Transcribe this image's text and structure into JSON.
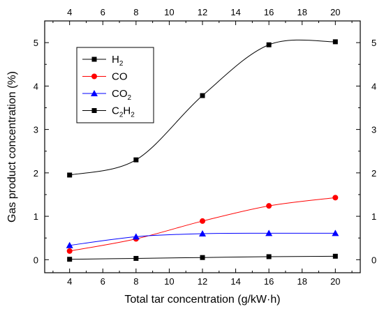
{
  "chart_data": {
    "type": "line",
    "title": "",
    "xlabel": "Total tar concentration (g/kW·h)",
    "ylabel": "Gas product concentration (%)",
    "xlim": [
      2.5,
      21.5
    ],
    "ylim": [
      -0.3,
      5.5
    ],
    "x_ticks": [
      4,
      6,
      8,
      10,
      12,
      14,
      16,
      18,
      20
    ],
    "y_ticks": [
      0,
      1,
      2,
      3,
      4,
      5
    ],
    "mirror_axes": true,
    "grid": false,
    "legend_position": "top-left",
    "series": [
      {
        "name": "H2",
        "name_parts": [
          [
            "H",
            ""
          ],
          [
            "2",
            "sub"
          ]
        ],
        "marker": "square",
        "color": "#000000",
        "x": [
          4,
          8,
          12,
          16,
          20
        ],
        "y": [
          1.95,
          2.3,
          3.78,
          4.95,
          5.02
        ]
      },
      {
        "name": "CO",
        "name_parts": [
          [
            "CO",
            ""
          ]
        ],
        "marker": "circle",
        "color": "#ff0000",
        "x": [
          4,
          8,
          12,
          16,
          20
        ],
        "y": [
          0.2,
          0.48,
          0.89,
          1.24,
          1.43
        ]
      },
      {
        "name": "CO2",
        "name_parts": [
          [
            "CO",
            ""
          ],
          [
            "2",
            "sub"
          ]
        ],
        "marker": "triangle",
        "color": "#0000ff",
        "x": [
          4,
          8,
          12,
          16,
          20
        ],
        "y": [
          0.33,
          0.53,
          0.6,
          0.61,
          0.61
        ]
      },
      {
        "name": "C2H2",
        "name_parts": [
          [
            "C",
            ""
          ],
          [
            "2",
            "sub"
          ],
          [
            "H",
            ""
          ],
          [
            "2",
            "sub"
          ]
        ],
        "marker": "square",
        "color": "#000000",
        "x": [
          4,
          8,
          12,
          16,
          20
        ],
        "y": [
          0.01,
          0.03,
          0.05,
          0.07,
          0.08
        ]
      }
    ]
  }
}
